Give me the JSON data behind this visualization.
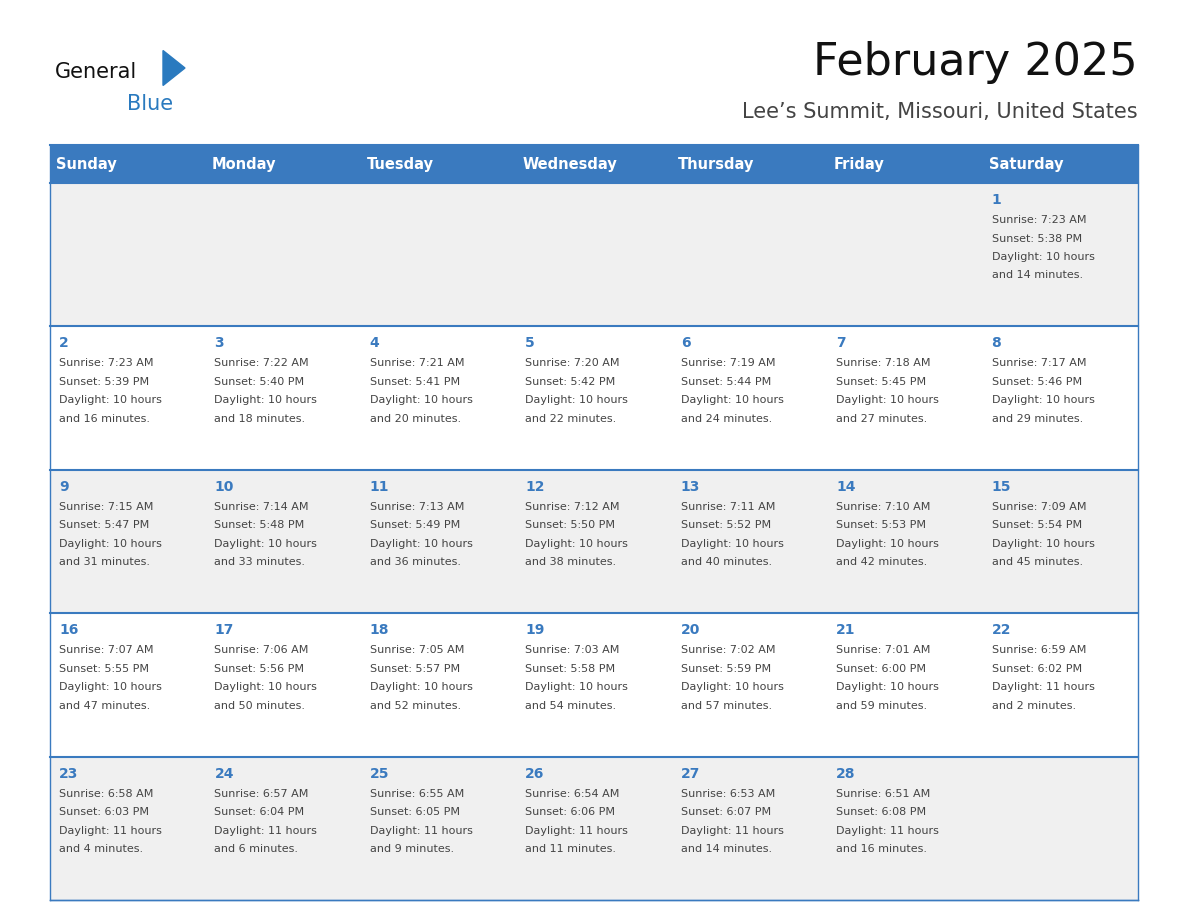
{
  "title": "February 2025",
  "subtitle": "Lee’s Summit, Missouri, United States",
  "days_of_week": [
    "Sunday",
    "Monday",
    "Tuesday",
    "Wednesday",
    "Thursday",
    "Friday",
    "Saturday"
  ],
  "header_bg": "#3a7abf",
  "header_text": "#ffffff",
  "row_bg_odd": "#f0f0f0",
  "row_bg_even": "#ffffff",
  "separator_color": "#3a7abf",
  "day_number_color": "#3a7abf",
  "text_color": "#444444",
  "title_color": "#111111",
  "subtitle_color": "#444444",
  "logo_general_color": "#111111",
  "logo_blue_color": "#2a7abf",
  "logo_triangle_color": "#2a7abf",
  "calendar_data": [
    [
      null,
      null,
      null,
      null,
      null,
      null,
      {
        "day": 1,
        "sunrise": "7:23 AM",
        "sunset": "5:38 PM",
        "daylight": "10 hours and 14 minutes."
      }
    ],
    [
      {
        "day": 2,
        "sunrise": "7:23 AM",
        "sunset": "5:39 PM",
        "daylight": "10 hours and 16 minutes."
      },
      {
        "day": 3,
        "sunrise": "7:22 AM",
        "sunset": "5:40 PM",
        "daylight": "10 hours and 18 minutes."
      },
      {
        "day": 4,
        "sunrise": "7:21 AM",
        "sunset": "5:41 PM",
        "daylight": "10 hours and 20 minutes."
      },
      {
        "day": 5,
        "sunrise": "7:20 AM",
        "sunset": "5:42 PM",
        "daylight": "10 hours and 22 minutes."
      },
      {
        "day": 6,
        "sunrise": "7:19 AM",
        "sunset": "5:44 PM",
        "daylight": "10 hours and 24 minutes."
      },
      {
        "day": 7,
        "sunrise": "7:18 AM",
        "sunset": "5:45 PM",
        "daylight": "10 hours and 27 minutes."
      },
      {
        "day": 8,
        "sunrise": "7:17 AM",
        "sunset": "5:46 PM",
        "daylight": "10 hours and 29 minutes."
      }
    ],
    [
      {
        "day": 9,
        "sunrise": "7:15 AM",
        "sunset": "5:47 PM",
        "daylight": "10 hours and 31 minutes."
      },
      {
        "day": 10,
        "sunrise": "7:14 AM",
        "sunset": "5:48 PM",
        "daylight": "10 hours and 33 minutes."
      },
      {
        "day": 11,
        "sunrise": "7:13 AM",
        "sunset": "5:49 PM",
        "daylight": "10 hours and 36 minutes."
      },
      {
        "day": 12,
        "sunrise": "7:12 AM",
        "sunset": "5:50 PM",
        "daylight": "10 hours and 38 minutes."
      },
      {
        "day": 13,
        "sunrise": "7:11 AM",
        "sunset": "5:52 PM",
        "daylight": "10 hours and 40 minutes."
      },
      {
        "day": 14,
        "sunrise": "7:10 AM",
        "sunset": "5:53 PM",
        "daylight": "10 hours and 42 minutes."
      },
      {
        "day": 15,
        "sunrise": "7:09 AM",
        "sunset": "5:54 PM",
        "daylight": "10 hours and 45 minutes."
      }
    ],
    [
      {
        "day": 16,
        "sunrise": "7:07 AM",
        "sunset": "5:55 PM",
        "daylight": "10 hours and 47 minutes."
      },
      {
        "day": 17,
        "sunrise": "7:06 AM",
        "sunset": "5:56 PM",
        "daylight": "10 hours and 50 minutes."
      },
      {
        "day": 18,
        "sunrise": "7:05 AM",
        "sunset": "5:57 PM",
        "daylight": "10 hours and 52 minutes."
      },
      {
        "day": 19,
        "sunrise": "7:03 AM",
        "sunset": "5:58 PM",
        "daylight": "10 hours and 54 minutes."
      },
      {
        "day": 20,
        "sunrise": "7:02 AM",
        "sunset": "5:59 PM",
        "daylight": "10 hours and 57 minutes."
      },
      {
        "day": 21,
        "sunrise": "7:01 AM",
        "sunset": "6:00 PM",
        "daylight": "10 hours and 59 minutes."
      },
      {
        "day": 22,
        "sunrise": "6:59 AM",
        "sunset": "6:02 PM",
        "daylight": "11 hours and 2 minutes."
      }
    ],
    [
      {
        "day": 23,
        "sunrise": "6:58 AM",
        "sunset": "6:03 PM",
        "daylight": "11 hours and 4 minutes."
      },
      {
        "day": 24,
        "sunrise": "6:57 AM",
        "sunset": "6:04 PM",
        "daylight": "11 hours and 6 minutes."
      },
      {
        "day": 25,
        "sunrise": "6:55 AM",
        "sunset": "6:05 PM",
        "daylight": "11 hours and 9 minutes."
      },
      {
        "day": 26,
        "sunrise": "6:54 AM",
        "sunset": "6:06 PM",
        "daylight": "11 hours and 11 minutes."
      },
      {
        "day": 27,
        "sunrise": "6:53 AM",
        "sunset": "6:07 PM",
        "daylight": "11 hours and 14 minutes."
      },
      {
        "day": 28,
        "sunrise": "6:51 AM",
        "sunset": "6:08 PM",
        "daylight": "11 hours and 16 minutes."
      },
      null
    ]
  ]
}
